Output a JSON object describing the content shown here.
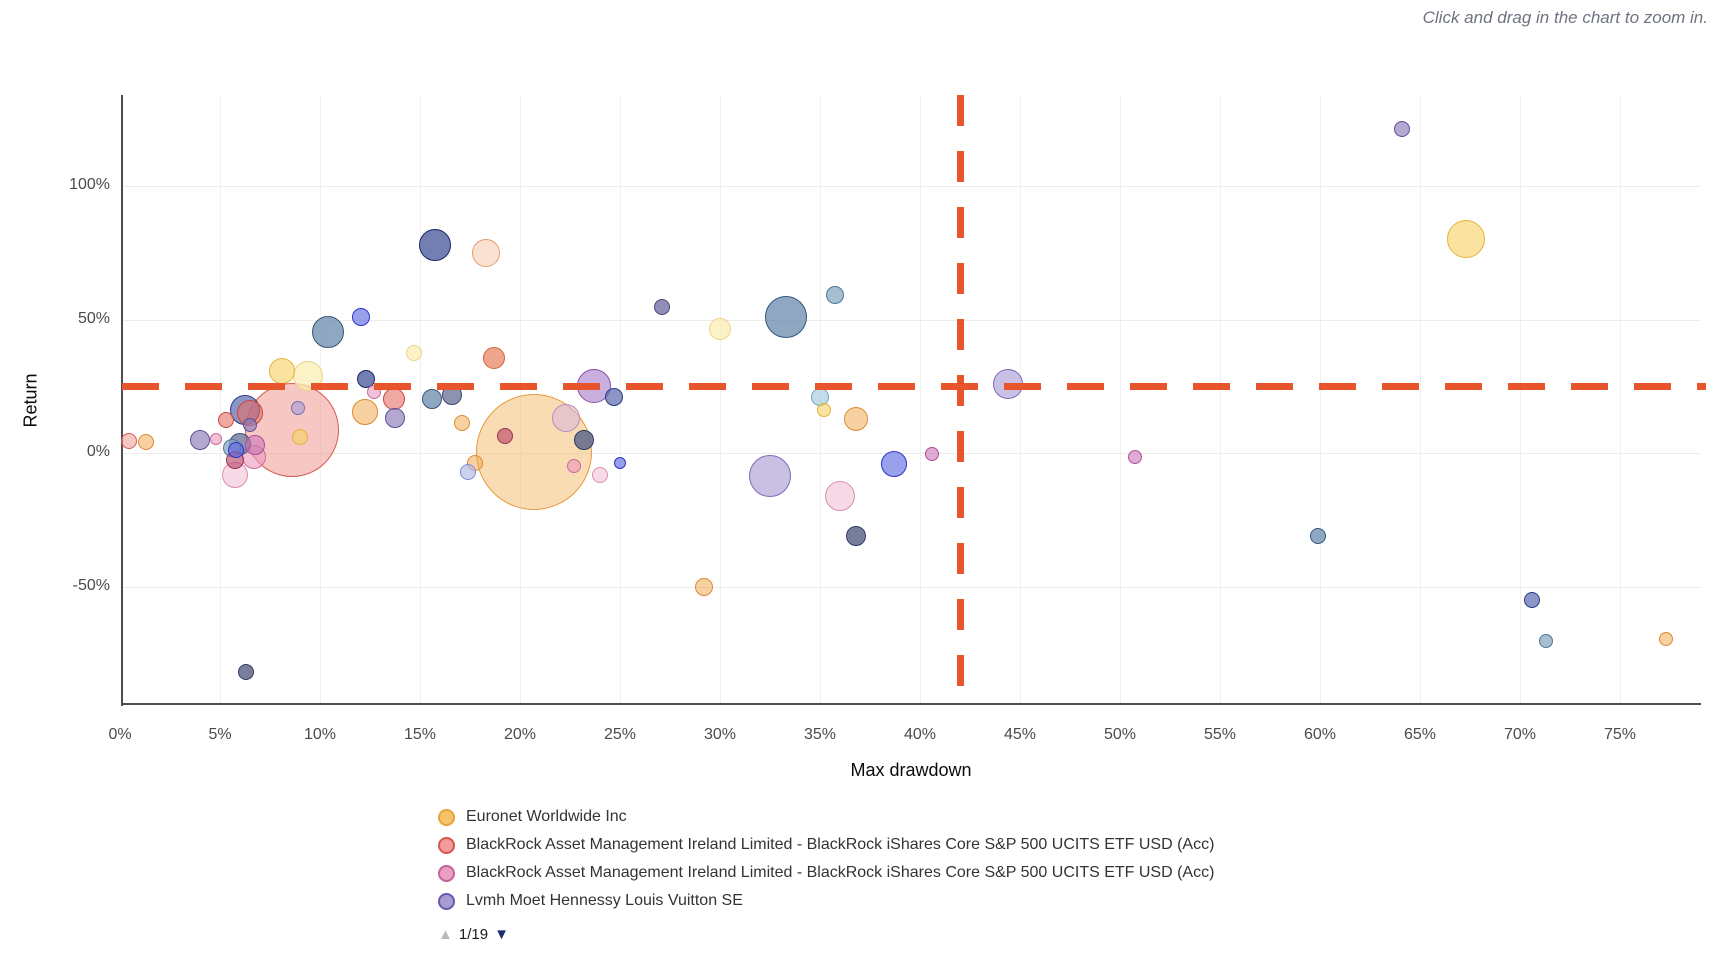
{
  "hint": "Click and drag in the chart to zoom in.",
  "legend": {
    "items": [
      {
        "label": "Euronet Worldwide Inc",
        "fill": "#F5C469",
        "border": "#E9A23B"
      },
      {
        "label": "BlackRock Asset Management Ireland Limited - BlackRock iShares Core S&P 500 UCITS ETF USD (Acc)",
        "fill": "#F29B9B",
        "border": "#D9534F"
      },
      {
        "label": "BlackRock Asset Management Ireland Limited - BlackRock iShares Core S&P 500 UCITS ETF USD (Acc)",
        "fill": "#E79FC4",
        "border": "#C9609A"
      },
      {
        "label": "Lvmh Moet Hennessy Louis Vuitton SE",
        "fill": "#A79BD1",
        "border": "#6A58AD"
      }
    ],
    "pager": {
      "up_icon": "▲",
      "label": "1/19",
      "down_icon": "▼"
    }
  },
  "chart_data": {
    "type": "scatter",
    "title": "",
    "xlabel": "Max drawdown",
    "ylabel": "Return",
    "xlim": [
      -0.1,
      79
    ],
    "ylim": [
      -94,
      133
    ],
    "grid": true,
    "x_tick_values": [
      0,
      5,
      10,
      15,
      20,
      25,
      30,
      35,
      40,
      45,
      50,
      55,
      60,
      65,
      70,
      75
    ],
    "x_tick_labels": [
      "0%",
      "5%",
      "10%",
      "15%",
      "20%",
      "25%",
      "30%",
      "35%",
      "40%",
      "45%",
      "50%",
      "55%",
      "60%",
      "65%",
      "70%",
      "75%"
    ],
    "y_tick_values": [
      100,
      50,
      0,
      -50
    ],
    "y_tick_labels": [
      "100%",
      "50%",
      "0%",
      "-50%"
    ],
    "threshold_lines": {
      "x_value": 42,
      "y_value": 25,
      "color": "#E8542C",
      "style": "dashed"
    },
    "palette": {
      "orange": {
        "border": "#DC8A2E",
        "fill": "rgba(242,171,85,0.55)"
      },
      "orangeBig": {
        "border": "#E79A3C",
        "fill": "rgba(245,185,105,0.5)"
      },
      "yellow": {
        "border": "#E3B33A",
        "fill": "rgba(247,208,96,0.6)"
      },
      "paleYellow": {
        "border": "#EAD386",
        "fill": "rgba(250,238,175,0.7)"
      },
      "peach": {
        "border": "#E59A70",
        "fill": "rgba(248,205,180,0.6)"
      },
      "orangeRed": {
        "border": "#D4603E",
        "fill": "rgba(233,135,100,0.75)"
      },
      "red": {
        "border": "#C94740",
        "fill": "rgba(230,110,102,0.6)"
      },
      "salmon": {
        "border": "#D65B50",
        "fill": "rgba(240,145,135,0.5)"
      },
      "maroon": {
        "border": "#9E3553",
        "fill": "rgba(185,75,105,0.65)"
      },
      "pink": {
        "border": "#C86C98",
        "fill": "rgba(233,152,188,0.6)"
      },
      "lightPink": {
        "border": "#DA8FB2",
        "fill": "rgba(243,192,214,0.6)"
      },
      "magenta": {
        "border": "#AD4E9A",
        "fill": "rgba(202,118,182,0.6)"
      },
      "mauve": {
        "border": "#B98BC0",
        "fill": "rgba(215,180,220,0.55)"
      },
      "violet": {
        "border": "#8A4FA8",
        "fill": "rgba(165,120,200,0.6)"
      },
      "purple": {
        "border": "#5E4E9C",
        "fill": "rgba(140,122,184,0.65)"
      },
      "lavender": {
        "border": "#7D6BB8",
        "fill": "rgba(172,158,214,0.65)"
      },
      "lavenderBlue": {
        "border": "#8089D6",
        "fill": "rgba(178,184,232,0.65)"
      },
      "blue": {
        "border": "#2A33C8",
        "fill": "rgba(98,110,228,0.65)"
      },
      "navy": {
        "border": "#1B2766",
        "fill": "rgba(80,95,160,0.8)"
      },
      "indigo": {
        "border": "#2A3784",
        "fill": "rgba(100,115,180,0.75)"
      },
      "slateBlue": {
        "border": "#33567E",
        "fill": "rgba(115,145,178,0.8)"
      },
      "steelBlue": {
        "border": "#49799A",
        "fill": "rgba(138,168,192,0.75)"
      },
      "lightSteel": {
        "border": "#6FA5C4",
        "fill": "rgba(165,200,224,0.65)"
      },
      "slate": {
        "border": "#3E4870",
        "fill": "rgba(110,120,155,0.8)"
      },
      "darkSlate": {
        "border": "#2F3A5E",
        "fill": "rgba(95,105,140,0.85)"
      },
      "slatePurple": {
        "border": "#474478",
        "fill": "rgba(118,115,165,0.8)"
      }
    },
    "bubbles": [
      {
        "x": 0.45,
        "y": 4.5,
        "r": 8,
        "c": "salmon"
      },
      {
        "x": 1.3,
        "y": 4.1,
        "r": 8,
        "c": "orange"
      },
      {
        "x": 4.0,
        "y": 4.7,
        "r": 10,
        "c": "purple"
      },
      {
        "x": 4.8,
        "y": 5.1,
        "r": 6,
        "c": "pink"
      },
      {
        "x": 5.3,
        "y": 12.4,
        "r": 8,
        "c": "red"
      },
      {
        "x": 5.6,
        "y": 1.8,
        "r": 9,
        "c": "steelBlue"
      },
      {
        "x": 5.8,
        "y": 1.0,
        "r": 8,
        "c": "blue"
      },
      {
        "x": 5.75,
        "y": -2.6,
        "r": 9,
        "c": "maroon"
      },
      {
        "x": 5.75,
        "y": -8.2,
        "r": 13,
        "c": "lightPink"
      },
      {
        "x": 6.0,
        "y": 3.5,
        "r": 11,
        "c": "slate"
      },
      {
        "x": 6.25,
        "y": 16.1,
        "r": 15,
        "c": "indigo"
      },
      {
        "x": 6.5,
        "y": 14.9,
        "r": 13,
        "c": "red"
      },
      {
        "x": 6.5,
        "y": 10.5,
        "r": 7,
        "c": "purple"
      },
      {
        "x": 6.75,
        "y": 3.0,
        "r": 10,
        "c": "magenta"
      },
      {
        "x": 6.7,
        "y": -1.4,
        "r": 12,
        "c": "pink"
      },
      {
        "x": 6.3,
        "y": -82,
        "r": 8,
        "c": "darkSlate"
      },
      {
        "x": 8.1,
        "y": 30.7,
        "r": 13,
        "c": "yellow"
      },
      {
        "x": 9.4,
        "y": 28.9,
        "r": 15,
        "c": "paleYellow"
      },
      {
        "x": 8.6,
        "y": 8.6,
        "r": 47,
        "c": "salmon"
      },
      {
        "x": 8.9,
        "y": 16.7,
        "r": 7,
        "c": "lavender"
      },
      {
        "x": 9.0,
        "y": 6.0,
        "r": 8,
        "c": "yellow"
      },
      {
        "x": 10.4,
        "y": 45.3,
        "r": 16,
        "c": "slateBlue"
      },
      {
        "x": 12.05,
        "y": 51.0,
        "r": 9,
        "c": "blue"
      },
      {
        "x": 12.3,
        "y": 27.9,
        "r": 9,
        "c": "navy"
      },
      {
        "x": 12.7,
        "y": 23.0,
        "r": 7,
        "c": "pink"
      },
      {
        "x": 12.25,
        "y": 15.5,
        "r": 13,
        "c": "orange"
      },
      {
        "x": 13.7,
        "y": 20.3,
        "r": 11,
        "c": "red"
      },
      {
        "x": 13.75,
        "y": 13.0,
        "r": 10,
        "c": "purple"
      },
      {
        "x": 14.7,
        "y": 37.4,
        "r": 8,
        "c": "paleYellow"
      },
      {
        "x": 15.75,
        "y": 77.9,
        "r": 16,
        "c": "navy"
      },
      {
        "x": 18.3,
        "y": 75.0,
        "r": 14,
        "c": "peach"
      },
      {
        "x": 15.6,
        "y": 20.3,
        "r": 10,
        "c": "slateBlue"
      },
      {
        "x": 16.6,
        "y": 21.6,
        "r": 10,
        "c": "slate"
      },
      {
        "x": 17.1,
        "y": 11.2,
        "r": 8,
        "c": "orange"
      },
      {
        "x": 18.7,
        "y": 35.7,
        "r": 11,
        "c": "orangeRed"
      },
      {
        "x": 19.25,
        "y": 6.2,
        "r": 8,
        "c": "maroon"
      },
      {
        "x": 20.7,
        "y": 0.5,
        "r": 58,
        "c": "orangeBig"
      },
      {
        "x": 22.3,
        "y": 13.2,
        "r": 14,
        "c": "mauve"
      },
      {
        "x": 23.2,
        "y": 4.7,
        "r": 10,
        "c": "darkSlate"
      },
      {
        "x": 17.75,
        "y": -3.7,
        "r": 8,
        "c": "orange"
      },
      {
        "x": 17.4,
        "y": -7.3,
        "r": 8,
        "c": "lavenderBlue"
      },
      {
        "x": 22.7,
        "y": -5.0,
        "r": 7,
        "c": "pink"
      },
      {
        "x": 24.0,
        "y": -8.3,
        "r": 8,
        "c": "lightPink"
      },
      {
        "x": 23.7,
        "y": 25.0,
        "r": 17,
        "c": "violet"
      },
      {
        "x": 24.7,
        "y": 20.8,
        "r": 9,
        "c": "indigo"
      },
      {
        "x": 25.0,
        "y": -3.6,
        "r": 6,
        "c": "blue"
      },
      {
        "x": 27.1,
        "y": 54.7,
        "r": 8,
        "c": "slatePurple"
      },
      {
        "x": 30.0,
        "y": 46.4,
        "r": 11,
        "c": "paleYellow"
      },
      {
        "x": 33.3,
        "y": 51.0,
        "r": 21,
        "c": "slateBlue"
      },
      {
        "x": 35.75,
        "y": 59.0,
        "r": 9,
        "c": "steelBlue"
      },
      {
        "x": 35.0,
        "y": 20.8,
        "r": 9,
        "c": "lightSteel"
      },
      {
        "x": 35.2,
        "y": 16.1,
        "r": 7,
        "c": "yellow"
      },
      {
        "x": 36.8,
        "y": 12.8,
        "r": 12,
        "c": "orange"
      },
      {
        "x": 29.2,
        "y": -50.0,
        "r": 9,
        "c": "orange"
      },
      {
        "x": 32.5,
        "y": -8.8,
        "r": 21,
        "c": "lavender"
      },
      {
        "x": 36.0,
        "y": -16.0,
        "r": 15,
        "c": "lightPink"
      },
      {
        "x": 36.8,
        "y": -31.0,
        "r": 10,
        "c": "darkSlate"
      },
      {
        "x": 38.7,
        "y": -4.0,
        "r": 13,
        "c": "blue"
      },
      {
        "x": 40.6,
        "y": -0.3,
        "r": 7,
        "c": "magenta"
      },
      {
        "x": 44.4,
        "y": 26.0,
        "r": 15,
        "c": "lavender"
      },
      {
        "x": 50.75,
        "y": -1.5,
        "r": 7,
        "c": "magenta"
      },
      {
        "x": 59.9,
        "y": -31.0,
        "r": 8,
        "c": "slateBlue"
      },
      {
        "x": 64.1,
        "y": 121.5,
        "r": 8,
        "c": "purple"
      },
      {
        "x": 67.3,
        "y": 80.0,
        "r": 19,
        "c": "yellow"
      },
      {
        "x": 70.6,
        "y": -55.0,
        "r": 8,
        "c": "indigo"
      },
      {
        "x": 71.3,
        "y": -70.5,
        "r": 7,
        "c": "steelBlue"
      },
      {
        "x": 77.3,
        "y": -69.5,
        "r": 7,
        "c": "orange"
      }
    ]
  }
}
